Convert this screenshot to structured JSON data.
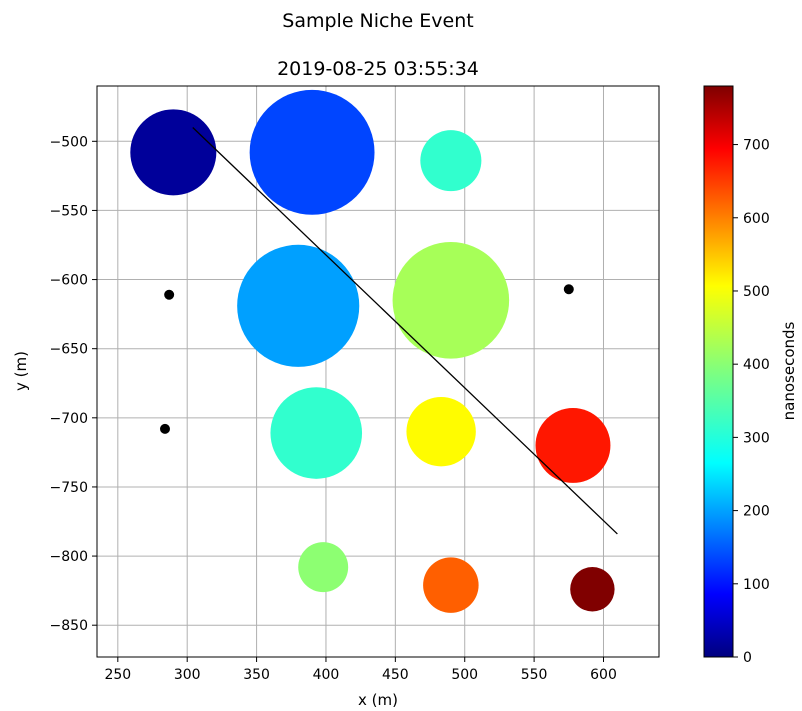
{
  "chart_data": {
    "type": "scatter",
    "title": "Sample Niche Event",
    "subtitle": "2019-08-25 03:55:34",
    "xlabel": "x (m)",
    "ylabel": "y (m)",
    "xlim": [
      235,
      640
    ],
    "ylim": [
      -873,
      -460
    ],
    "x_ticks": [
      250,
      300,
      350,
      400,
      450,
      500,
      550,
      600
    ],
    "y_ticks": [
      -500,
      -550,
      -600,
      -650,
      -700,
      -750,
      -800,
      -850
    ],
    "grid": true,
    "colormap": "jet",
    "colorbar": {
      "label": "nanoseconds",
      "range": [
        0,
        780
      ],
      "ticks": [
        0,
        100,
        200,
        300,
        400,
        500,
        600,
        700
      ]
    },
    "points": [
      {
        "x": 290,
        "y": -508,
        "size": 31,
        "value": 20
      },
      {
        "x": 390,
        "y": -508,
        "size": 45,
        "value": 150
      },
      {
        "x": 490,
        "y": -514,
        "size": 22,
        "value": 330
      },
      {
        "x": 380,
        "y": -619,
        "size": 44,
        "value": 220
      },
      {
        "x": 490,
        "y": -615,
        "size": 42,
        "value": 420
      },
      {
        "x": 393,
        "y": -711,
        "size": 33,
        "value": 330
      },
      {
        "x": 483,
        "y": -710,
        "size": 25,
        "value": 490
      },
      {
        "x": 578,
        "y": -720,
        "size": 27,
        "value": 665
      },
      {
        "x": 398,
        "y": -808,
        "size": 18,
        "value": 400
      },
      {
        "x": 490,
        "y": -821,
        "size": 20,
        "value": 610
      },
      {
        "x": 592,
        "y": -824,
        "size": 16,
        "value": 780
      }
    ],
    "markers": [
      {
        "x": 287,
        "y": -611
      },
      {
        "x": 575,
        "y": -607
      },
      {
        "x": 284,
        "y": -708
      }
    ],
    "track": {
      "x": [
        304,
        610
      ],
      "y": [
        -490,
        -784
      ]
    }
  }
}
